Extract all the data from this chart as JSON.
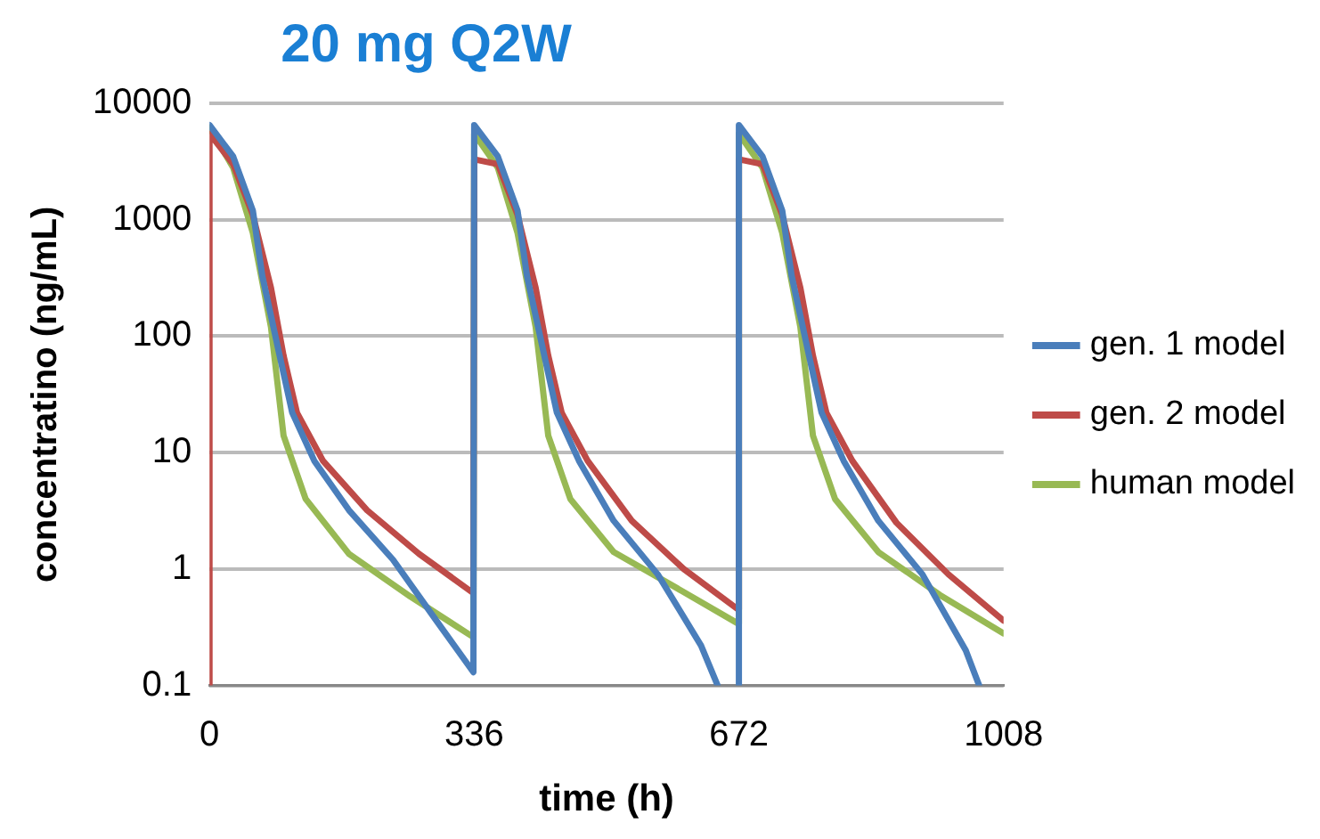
{
  "chart_data": {
    "type": "line",
    "title": "20 mg Q2W",
    "xlabel": "time (h)",
    "ylabel": "concentratino (ng/mL)",
    "xlim": [
      0,
      1008
    ],
    "xticks": [
      0,
      336,
      672,
      1008
    ],
    "ylim": [
      0.1,
      10000
    ],
    "yticks": [
      0.1,
      1,
      10,
      100,
      1000,
      10000
    ],
    "log": "y",
    "grid": "y",
    "legend": "right",
    "marker": "none",
    "line_style": "solid",
    "series": [
      {
        "name": "gen. 1 model",
        "color": "#4a7ebb",
        "x": [
          0,
          30,
          55,
          67,
          89,
          105,
          133,
          177,
          233,
          288,
          335,
          336,
          366,
          391,
          403,
          425,
          441,
          469,
          513,
          569,
          624,
          645,
          null,
          672,
          672,
          702,
          727,
          739,
          761,
          777,
          805,
          849,
          905,
          960,
          977
        ],
        "values": [
          6500,
          3500,
          1200,
          330,
          68,
          22,
          8.5,
          3.2,
          1.2,
          0.36,
          0.13,
          6500,
          3500,
          1200,
          330,
          68,
          22,
          8.5,
          2.6,
          0.9,
          0.22,
          0.1,
          null,
          0.1,
          6500,
          3500,
          1200,
          330,
          68,
          22,
          8.5,
          2.6,
          0.9,
          0.2,
          0.1
        ]
      },
      {
        "name": "gen. 2 model",
        "color": "#be4b48",
        "x": [
          0,
          0,
          30,
          55,
          78,
          94,
          111,
          144,
          200,
          266,
          335,
          336,
          366,
          391,
          414,
          430,
          447,
          480,
          536,
          602,
          671,
          672,
          702,
          727,
          750,
          766,
          783,
          816,
          872,
          938,
          1008
        ],
        "values": [
          0.1,
          5500,
          3000,
          1100,
          260,
          68,
          22,
          8.5,
          3.2,
          1.35,
          0.62,
          3300,
          3000,
          1100,
          260,
          68,
          22,
          8.5,
          2.6,
          1.0,
          0.45,
          3300,
          3000,
          1100,
          260,
          68,
          22,
          8.5,
          2.5,
          0.9,
          0.36
        ]
      },
      {
        "name": "human model",
        "color": "#98b954",
        "x": [
          0,
          30,
          55,
          78,
          94,
          122,
          177,
          255,
          335,
          336,
          366,
          391,
          414,
          430,
          458,
          513,
          591,
          671,
          672,
          702,
          727,
          750,
          766,
          794,
          849,
          927,
          1008
        ],
        "values": [
          6200,
          2800,
          770,
          120,
          14,
          4,
          1.35,
          0.58,
          0.26,
          5500,
          2800,
          770,
          120,
          14,
          4,
          1.4,
          0.7,
          0.34,
          5500,
          2800,
          770,
          120,
          14,
          4,
          1.4,
          0.6,
          0.28
        ]
      }
    ]
  }
}
